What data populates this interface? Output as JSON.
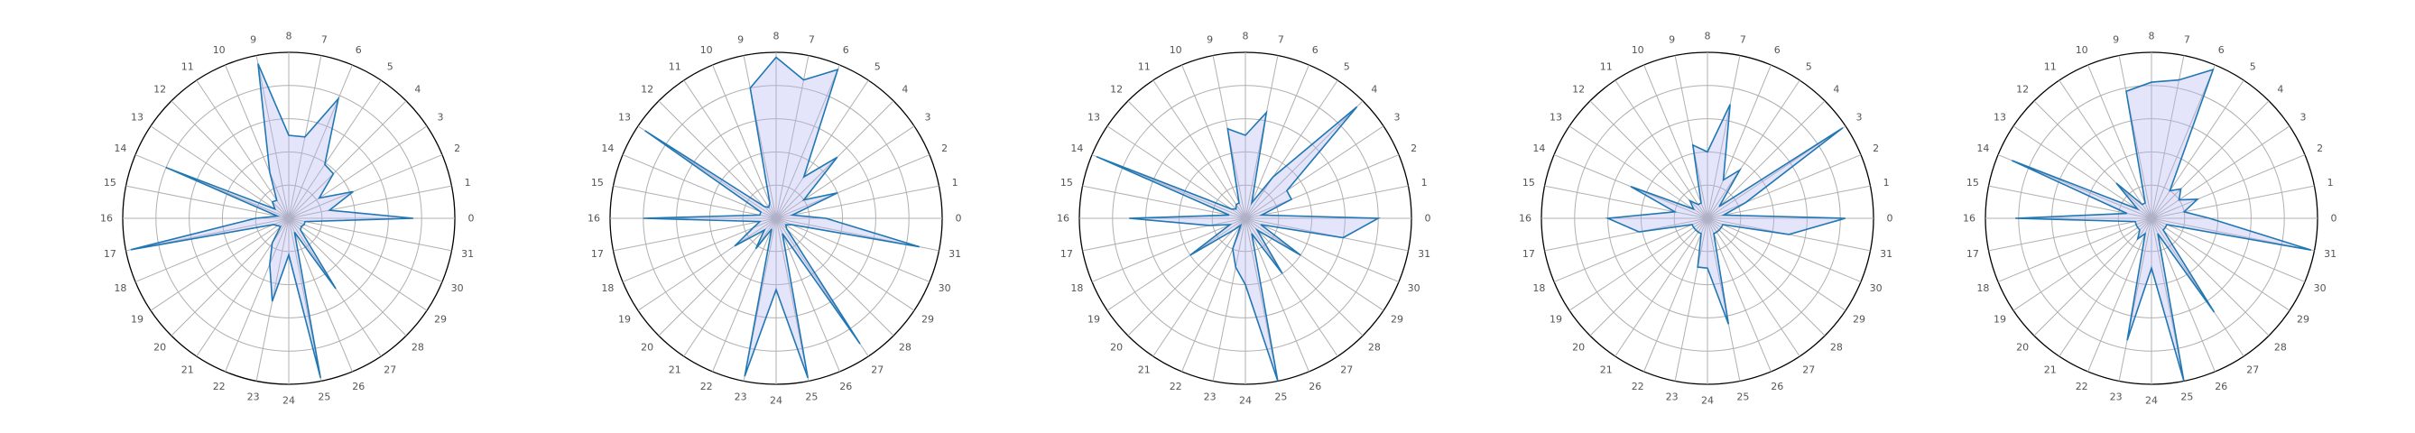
{
  "chart_data": [
    {
      "type": "radar",
      "categories": [
        "0",
        "1",
        "2",
        "3",
        "4",
        "5",
        "6",
        "7",
        "8",
        "9",
        "10",
        "11",
        "12",
        "13",
        "14",
        "15",
        "16",
        "17",
        "18",
        "19",
        "20",
        "21",
        "22",
        "23",
        "24",
        "25",
        "26",
        "27",
        "28",
        "29",
        "30",
        "31"
      ],
      "values": [
        0.75,
        0.25,
        0.42,
        0.22,
        0.38,
        0.39,
        0.78,
        0.5,
        0.5,
        0.95,
        0.3,
        0.13,
        0.14,
        0.1,
        0.8,
        0.07,
        0.2,
        0.97,
        0.1,
        0.08,
        0.07,
        0.18,
        0.3,
        0.51,
        0.22,
        0.98,
        0.09,
        0.51,
        0.1,
        0.09,
        0.1,
        0.1
      ],
      "rlim": [
        0,
        1
      ],
      "rings": [
        0.2,
        0.4,
        0.6,
        0.8,
        1.0
      ],
      "grid": true,
      "title": ""
    },
    {
      "type": "radar",
      "categories": [
        "0",
        "1",
        "2",
        "3",
        "4",
        "5",
        "6",
        "7",
        "8",
        "9",
        "10",
        "11",
        "12",
        "13",
        "14",
        "15",
        "16",
        "17",
        "18",
        "19",
        "20",
        "21",
        "22",
        "23",
        "24",
        "25",
        "26",
        "27",
        "28",
        "29",
        "30",
        "31"
      ],
      "values": [
        0.3,
        0.1,
        0.4,
        0.2,
        0.52,
        0.3,
        0.97,
        0.85,
        0.97,
        0.8,
        0.1,
        0.08,
        0.1,
        0.95,
        0.1,
        0.1,
        0.8,
        0.1,
        0.15,
        0.3,
        0.1,
        0.22,
        0.07,
        0.97,
        0.43,
        0.98,
        0.1,
        0.91,
        0.09,
        0.07,
        0.1,
        0.88
      ],
      "rlim": [
        0,
        1
      ],
      "rings": [
        0.2,
        0.4,
        0.6,
        0.8,
        1.0
      ],
      "grid": true,
      "title": ""
    },
    {
      "type": "radar",
      "categories": [
        "0",
        "1",
        "2",
        "3",
        "4",
        "5",
        "6",
        "7",
        "8",
        "9",
        "10",
        "11",
        "12",
        "13",
        "14",
        "15",
        "16",
        "17",
        "18",
        "19",
        "20",
        "21",
        "22",
        "23",
        "24",
        "25",
        "26",
        "27",
        "28",
        "29",
        "30",
        "31"
      ],
      "values": [
        0.8,
        0.1,
        0.3,
        0.3,
        0.95,
        0.3,
        0.1,
        0.65,
        0.5,
        0.55,
        0.1,
        0.1,
        0.08,
        0.1,
        0.97,
        0.1,
        0.7,
        0.22,
        0.1,
        0.4,
        0.1,
        0.05,
        0.2,
        0.3,
        0.4,
        1.0,
        0.1,
        0.4,
        0.1,
        0.4,
        0.1,
        0.6
      ],
      "rlim": [
        0,
        1
      ],
      "rings": [
        0.2,
        0.4,
        0.6,
        0.8,
        1.0
      ],
      "grid": true,
      "title": ""
    },
    {
      "type": "radar",
      "categories": [
        "0",
        "1",
        "2",
        "3",
        "4",
        "5",
        "6",
        "7",
        "8",
        "9",
        "10",
        "11",
        "12",
        "13",
        "14",
        "15",
        "16",
        "17",
        "18",
        "19",
        "20",
        "21",
        "22",
        "23",
        "24",
        "25",
        "26",
        "27",
        "28",
        "29",
        "30",
        "31"
      ],
      "values": [
        0.83,
        0.1,
        0.25,
        0.98,
        0.1,
        0.35,
        0.25,
        0.7,
        0.4,
        0.45,
        0.1,
        0.1,
        0.15,
        0.1,
        0.5,
        0.2,
        0.6,
        0.42,
        0.1,
        0.1,
        0.1,
        0.1,
        0.1,
        0.3,
        0.3,
        0.65,
        0.1,
        0.1,
        0.1,
        0.1,
        0.1,
        0.5
      ],
      "rlim": [
        0,
        1
      ],
      "rings": [
        0.2,
        0.4,
        0.6,
        0.8,
        1.0
      ],
      "grid": true,
      "title": ""
    },
    {
      "type": "radar",
      "categories": [
        "0",
        "1",
        "2",
        "3",
        "4",
        "5",
        "6",
        "7",
        "8",
        "9",
        "10",
        "11",
        "12",
        "13",
        "14",
        "15",
        "16",
        "17",
        "18",
        "19",
        "20",
        "21",
        "22",
        "23",
        "24",
        "25",
        "26",
        "27",
        "28",
        "29",
        "30",
        "31"
      ],
      "values": [
        0.35,
        0.2,
        0.3,
        0.2,
        0.25,
        0.2,
        0.97,
        0.85,
        0.82,
        0.78,
        0.1,
        0.1,
        0.3,
        0.1,
        0.91,
        0.15,
        0.82,
        0.1,
        0.1,
        0.1,
        0.1,
        0.15,
        0.1,
        0.75,
        0.3,
        1.0,
        0.1,
        0.68,
        0.1,
        0.1,
        0.1,
        0.98
      ],
      "rlim": [
        0,
        1
      ],
      "rings": [
        0.2,
        0.4,
        0.6,
        0.8,
        1.0
      ],
      "grid": true,
      "title": ""
    }
  ]
}
